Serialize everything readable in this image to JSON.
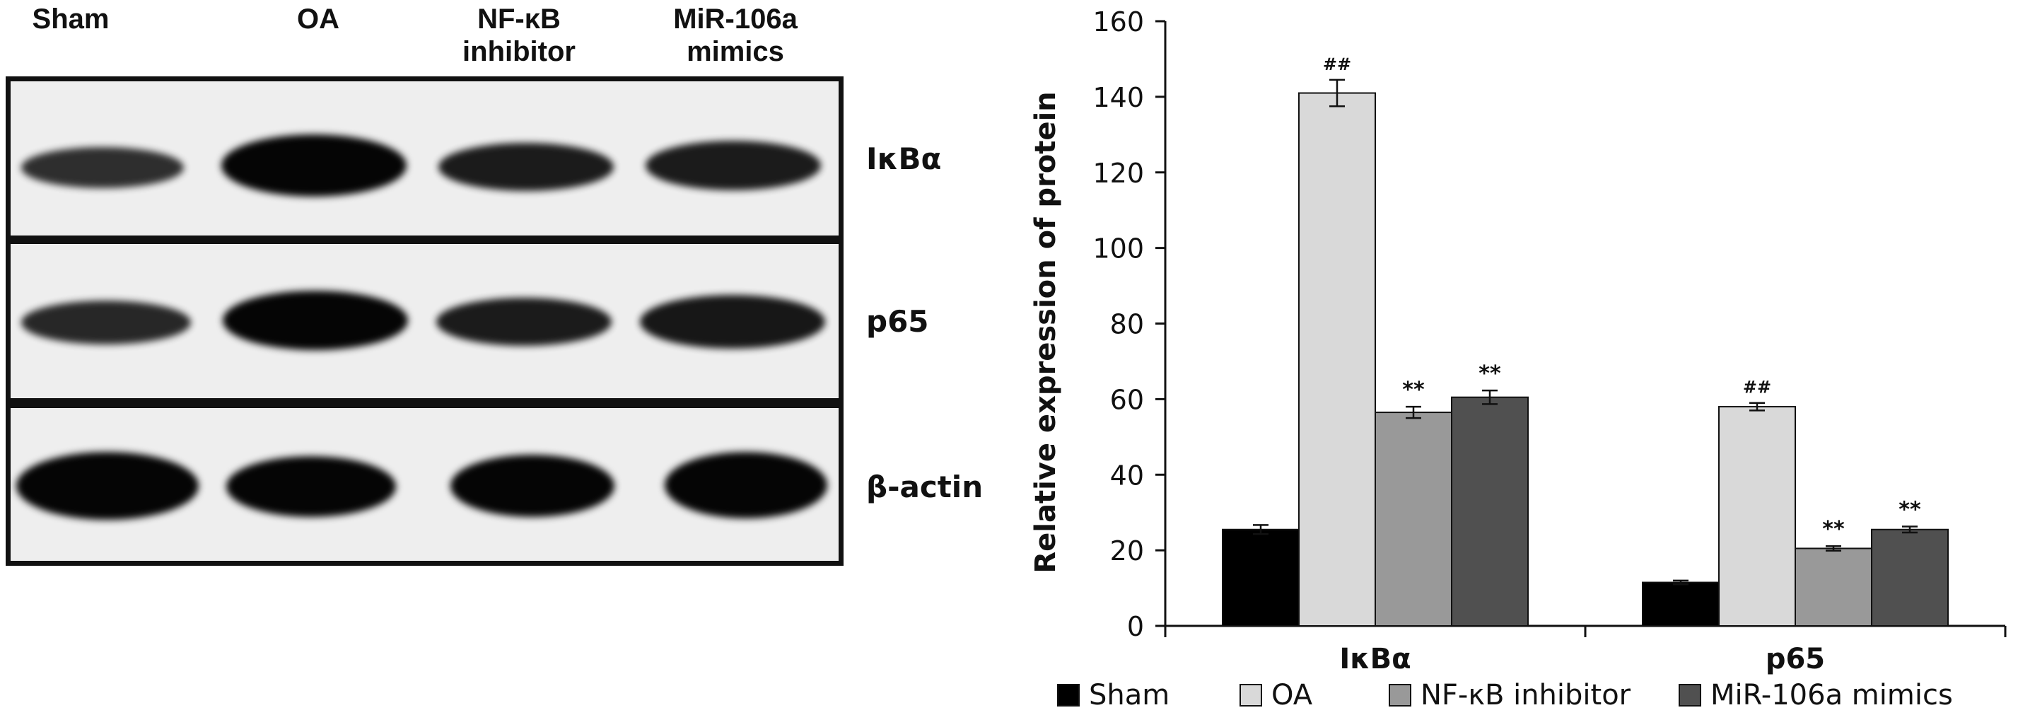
{
  "blot": {
    "lanes": [
      "Sham",
      "OA",
      "NF-κB\ninhibitor",
      "MiR-106a\nmimics"
    ],
    "rows": [
      "IκBα",
      "p65",
      "β-actin"
    ]
  },
  "chart_data": {
    "type": "bar",
    "categories": [
      "IκBα",
      "p65"
    ],
    "series": [
      {
        "name": "Sham",
        "values": [
          25.5,
          11.5
        ],
        "errors": [
          1.2,
          0.5
        ],
        "color": "#000000"
      },
      {
        "name": "OA",
        "values": [
          141,
          58
        ],
        "errors": [
          3.5,
          1.0
        ],
        "color": "#d9d9d9"
      },
      {
        "name": "NF-κB inhibitor",
        "values": [
          56.5,
          20.5
        ],
        "errors": [
          1.5,
          0.6
        ],
        "color": "#999999"
      },
      {
        "name": "MiR-106a mimics",
        "values": [
          60.5,
          25.5
        ],
        "errors": [
          1.8,
          0.8
        ],
        "color": "#505050"
      }
    ],
    "annotations": [
      [
        "",
        "##",
        "**",
        "**"
      ],
      [
        "",
        "##",
        "**",
        "**"
      ]
    ],
    "title": "",
    "xlabel": "",
    "ylabel": "Relative expression of protein",
    "ylim": [
      0,
      160
    ],
    "yticks": [
      0,
      20,
      40,
      60,
      80,
      100,
      120,
      140,
      160
    ],
    "grid": false,
    "legend_position": "bottom"
  }
}
